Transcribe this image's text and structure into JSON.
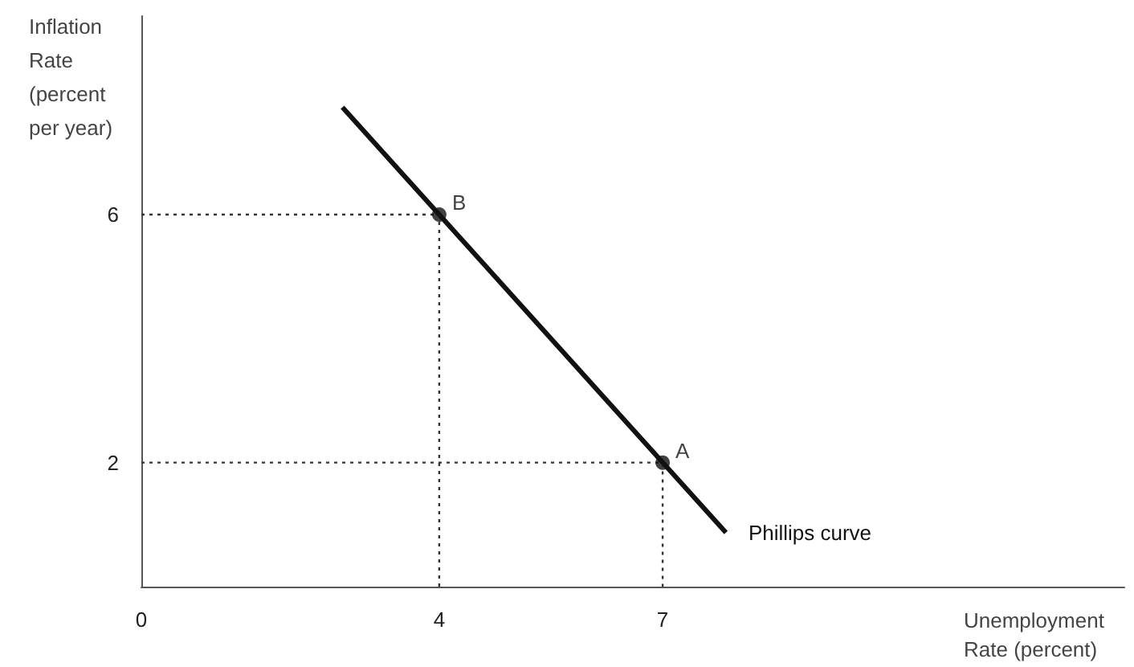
{
  "chart_data": {
    "type": "line",
    "xlabel": "Unemployment Rate (percent)",
    "ylabel": "Inflation Rate (percent per year)",
    "xlim": [
      0,
      13.2
    ],
    "ylim": [
      0,
      9.2
    ],
    "xticks": [
      0,
      4,
      7
    ],
    "yticks": [
      2,
      6
    ],
    "grid": false,
    "legend": false,
    "series": [
      {
        "name": "Phillips curve",
        "color": "#111111",
        "marker": "none",
        "line_style": "solid",
        "x": [
          2.7,
          7.85
        ],
        "values": [
          7.73,
          0.87
        ]
      },
      {
        "color": "#333333",
        "marker": "none",
        "line_style": "dotted",
        "x": [
          0,
          4,
          4
        ],
        "values": [
          6,
          6,
          0
        ]
      },
      {
        "color": "#333333",
        "marker": "none",
        "line_style": "dotted",
        "x": [
          0,
          7,
          7
        ],
        "values": [
          2,
          2,
          0
        ]
      },
      {
        "type": "scatter",
        "color": "#111111",
        "marker": "circle",
        "x": [
          4,
          7
        ],
        "values": [
          6,
          2
        ]
      }
    ],
    "annotations": [
      {
        "text": "B",
        "x": 4,
        "y": 6
      },
      {
        "text": "A",
        "x": 7,
        "y": 2
      }
    ]
  }
}
